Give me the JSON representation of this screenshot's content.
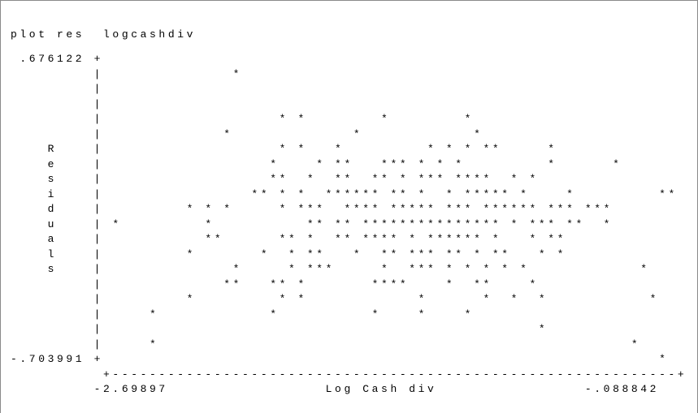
{
  "command": "plot res  logcashdiv",
  "plot_lines": [
    " .676122 +",
    "         |              *",
    "         |",
    "         |",
    "         |                   * *        *        *",
    "         |             *             *            *",
    "    R    |                   * *   *         * * * **     *",
    "    e    |                  *    * **   *** * * *         *      *",
    "    s    |                  **  *  **  ** * *** ****  * *",
    "    i    |                ** * *  ****** ** *  * ***** *    *         **",
    "    d    |         * * *     * ***  **** ***** *** ****** *** ***",
    "    u    | *         *          ** ** *************** * *** **  *",
    "    a    |           **      ** *  ** **** * ****** *   * **",
    "    l    |         *       *  * **   *  ** *** ** * **   * *",
    "    s    |              *     * ***     *  *** * * * * *            *",
    "         |             **   ** *       ****    *  **    *",
    "         |         *         * *            *      *  *  *           *",
    "         |     *            *          *    *    *",
    "         |                                               *",
    "         |     *                                                   *",
    "-.703991 +                                                            *",
    "          +-------------------------------------------------------------+",
    "         -2.69897                 Log Cash div                -.088842"
  ]
}
